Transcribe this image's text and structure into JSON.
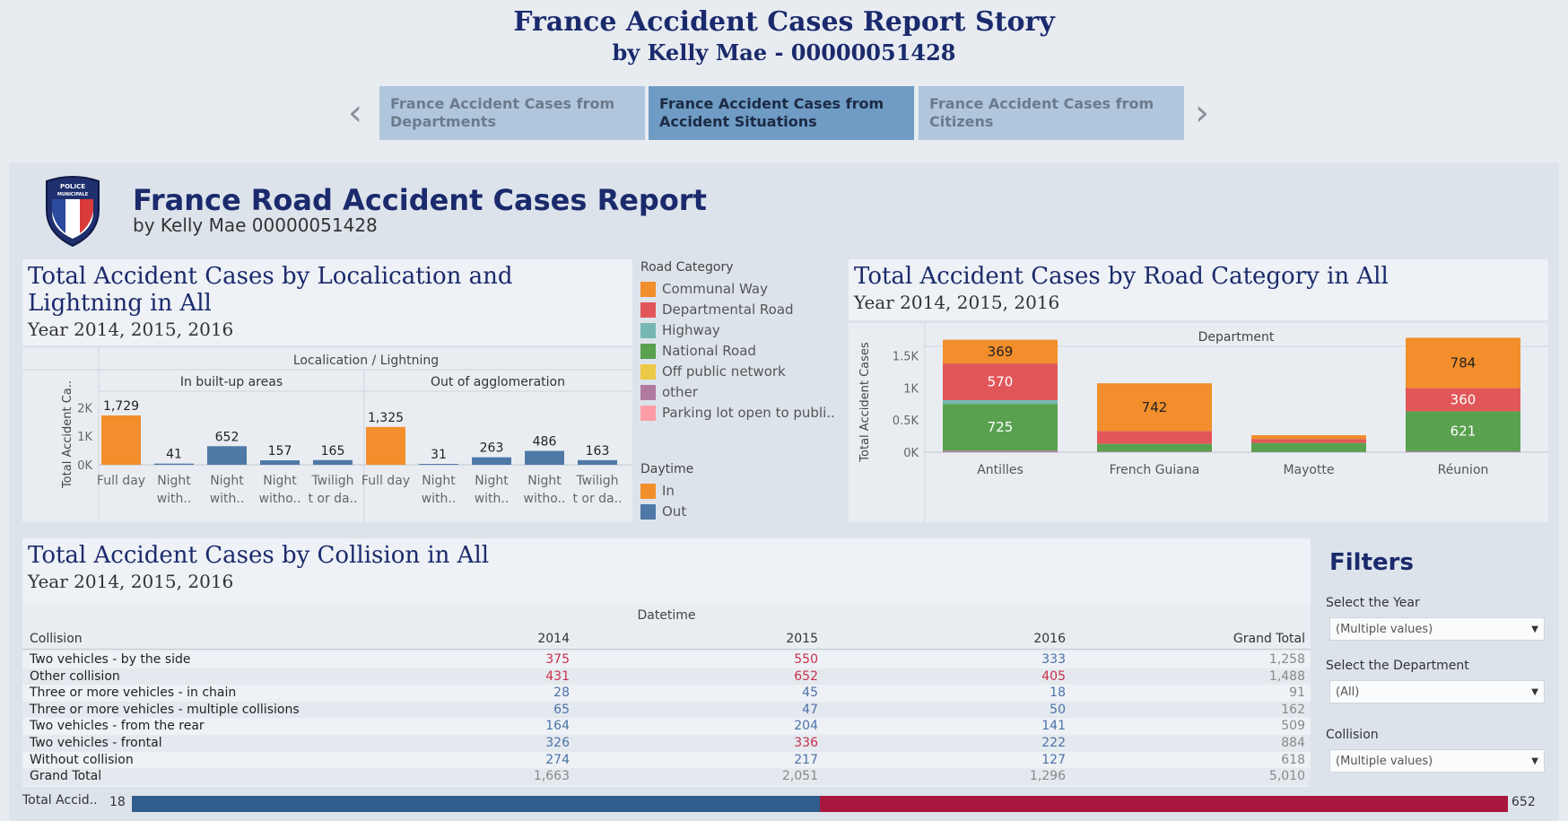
{
  "story": {
    "title": "France Accident Cases Report Story",
    "subtitle": "by Kelly Mae - 00000051428",
    "tabs": [
      {
        "label": "France Accident Cases from Departments",
        "active": false
      },
      {
        "label": "France Accident Cases from Accident Situations",
        "active": true
      },
      {
        "label": "France Accident Cases from Citizens",
        "active": false
      }
    ]
  },
  "header": {
    "title": "France Road Accident Cases Report",
    "subtitle": "by Kelly Mae 00000051428",
    "badge_text": "POLICE MUNICIPALE"
  },
  "colors": {
    "communal_way": "#f28e2b",
    "departmental_road": "#e15759",
    "highway": "#76b7b2",
    "national_road": "#59a14f",
    "off_public": "#edc948",
    "other": "#b07aa1",
    "parking": "#ff9da7",
    "in": "#f28e2b",
    "out": "#4e79a7"
  },
  "legend": {
    "road_title": "Road Category",
    "road_items": [
      "Communal Way",
      "Departmental Road",
      "Highway",
      "National Road",
      "Off public network",
      "other",
      "Parking lot open to publi.."
    ],
    "daytime_title": "Daytime",
    "daytime_items": [
      "In",
      "Out"
    ]
  },
  "chart_data": [
    {
      "type": "bar",
      "title": "Total Accident Cases by Localication and Lightning in All",
      "subtitle": "Year 2014, 2015, 2016",
      "header": "Localication / Lightning",
      "groups": [
        "In built-up areas",
        "Out of agglomeration"
      ],
      "ylabel": "Total Accident Ca..",
      "yticks": [
        "2K",
        "1K",
        "0K"
      ],
      "ylim": [
        0,
        2200
      ],
      "bars": [
        {
          "group": "In built-up areas",
          "label1": "Full day",
          "label2": "",
          "value": 1729,
          "value_label": "1,729",
          "daytime": "In"
        },
        {
          "group": "In built-up areas",
          "label1": "Night",
          "label2": "with..",
          "value": 41,
          "value_label": "41",
          "daytime": "Out"
        },
        {
          "group": "In built-up areas",
          "label1": "Night",
          "label2": "with..",
          "value": 652,
          "value_label": "652",
          "daytime": "Out"
        },
        {
          "group": "In built-up areas",
          "label1": "Night",
          "label2": "witho..",
          "value": 157,
          "value_label": "157",
          "daytime": "Out"
        },
        {
          "group": "In built-up areas",
          "label1": "Twiligh",
          "label2": "t or da..",
          "value": 165,
          "value_label": "165",
          "daytime": "Out"
        },
        {
          "group": "Out of agglomeration",
          "label1": "Full day",
          "label2": "",
          "value": 1325,
          "value_label": "1,325",
          "daytime": "In"
        },
        {
          "group": "Out of agglomeration",
          "label1": "Night",
          "label2": "with..",
          "value": 31,
          "value_label": "31",
          "daytime": "Out"
        },
        {
          "group": "Out of agglomeration",
          "label1": "Night",
          "label2": "with..",
          "value": 263,
          "value_label": "263",
          "daytime": "Out"
        },
        {
          "group": "Out of agglomeration",
          "label1": "Night",
          "label2": "witho..",
          "value": 486,
          "value_label": "486",
          "daytime": "Out"
        },
        {
          "group": "Out of agglomeration",
          "label1": "Twiligh",
          "label2": "t or da..",
          "value": 163,
          "value_label": "163",
          "daytime": "Out"
        }
      ]
    },
    {
      "type": "bar",
      "stacked": true,
      "title": "Total Accident Cases by Road Category in All",
      "subtitle": "Year 2014, 2015, 2016",
      "header": "Department",
      "ylabel": "Total Accident Cases",
      "yticks": [
        "1.5K",
        "1K",
        "0.5K",
        "0K"
      ],
      "ylim": [
        0,
        1800
      ],
      "categories": [
        "Antilles",
        "French Guiana",
        "Mayotte",
        "Réunion"
      ],
      "series": [
        {
          "name": "other",
          "values": [
            25,
            10,
            5,
            15
          ],
          "labels": [
            "",
            "",
            "",
            ""
          ]
        },
        {
          "name": "National Road",
          "values": [
            725,
            120,
            140,
            621
          ],
          "labels": [
            "725",
            "",
            "",
            "621"
          ]
        },
        {
          "name": "Highway",
          "values": [
            60,
            0,
            0,
            0
          ],
          "labels": [
            "",
            "",
            "",
            ""
          ]
        },
        {
          "name": "Departmental Road",
          "values": [
            570,
            200,
            60,
            360
          ],
          "labels": [
            "570",
            "",
            "",
            "360"
          ]
        },
        {
          "name": "Communal Way",
          "values": [
            369,
            742,
            60,
            784
          ],
          "labels": [
            "369",
            "742",
            "",
            "784"
          ]
        }
      ]
    },
    {
      "type": "table",
      "title": "Total Accident Cases by Collision in All",
      "subtitle": "Year 2014, 2015, 2016",
      "header": "Datetime",
      "columns": [
        "Collision",
        "2014",
        "2015",
        "2016",
        "Grand Total"
      ],
      "rows": [
        {
          "label": "Two vehicles - by the side",
          "v": [
            "375",
            "550",
            "333",
            "1,258"
          ],
          "c": [
            "red",
            "red",
            "blue",
            "gray"
          ]
        },
        {
          "label": "Other collision",
          "v": [
            "431",
            "652",
            "405",
            "1,488"
          ],
          "c": [
            "red",
            "red",
            "red",
            "gray"
          ]
        },
        {
          "label": "Three or more vehicles - in chain",
          "v": [
            "28",
            "45",
            "18",
            "91"
          ],
          "c": [
            "blue",
            "blue",
            "blue",
            "gray"
          ]
        },
        {
          "label": "Three or more vehicles - multiple collisions",
          "v": [
            "65",
            "47",
            "50",
            "162"
          ],
          "c": [
            "blue",
            "blue",
            "blue",
            "gray"
          ]
        },
        {
          "label": "Two vehicles - from the rear",
          "v": [
            "164",
            "204",
            "141",
            "509"
          ],
          "c": [
            "blue",
            "blue",
            "blue",
            "gray"
          ]
        },
        {
          "label": "Two vehicles - frontal",
          "v": [
            "326",
            "336",
            "222",
            "884"
          ],
          "c": [
            "blue",
            "red",
            "blue",
            "gray"
          ]
        },
        {
          "label": "Without collision",
          "v": [
            "274",
            "217",
            "127",
            "618"
          ],
          "c": [
            "blue",
            "blue",
            "blue",
            "gray"
          ]
        },
        {
          "label": "Grand Total",
          "v": [
            "1,663",
            "2,051",
            "1,296",
            "5,010"
          ],
          "c": [
            "gray",
            "gray",
            "gray",
            "gray"
          ]
        }
      ]
    }
  ],
  "color_legend": {
    "label": "Total Accid..",
    "min": "18",
    "max": "652",
    "mid_fraction": 0.5
  },
  "filters": {
    "title": "Filters",
    "year": {
      "label": "Select the Year",
      "value": "(Multiple values)"
    },
    "department": {
      "label": "Select the Department",
      "value": "(All)"
    },
    "collision": {
      "label": "Collision",
      "value": "(Multiple values)"
    }
  }
}
